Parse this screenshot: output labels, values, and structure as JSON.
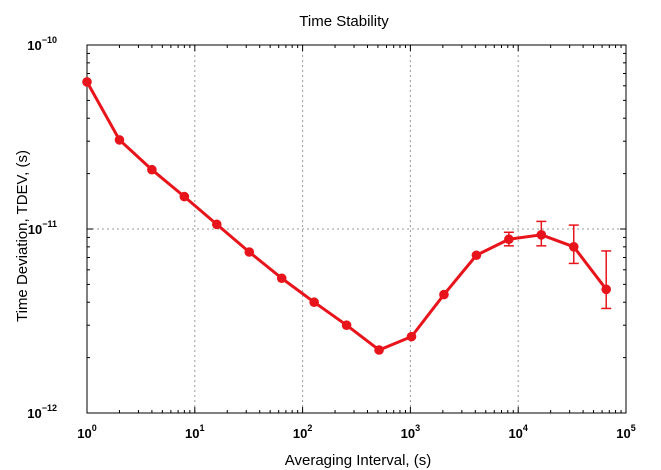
{
  "chart_data": {
    "type": "line",
    "title": "Time Stability",
    "xlabel": "Averaging Interval, (s)",
    "ylabel": "Time Deviation, TDEV, (s)",
    "xscale": "log",
    "yscale": "log",
    "xlim": [
      1,
      100000
    ],
    "ylim": [
      1e-12,
      1e-10
    ],
    "grid": true,
    "x_ticks": [
      {
        "value": 1,
        "base": "10",
        "exp": "0"
      },
      {
        "value": 10,
        "base": "10",
        "exp": "1"
      },
      {
        "value": 100,
        "base": "10",
        "exp": "2"
      },
      {
        "value": 1000,
        "base": "10",
        "exp": "3"
      },
      {
        "value": 10000,
        "base": "10",
        "exp": "4"
      },
      {
        "value": 100000,
        "base": "10",
        "exp": "5"
      }
    ],
    "y_ticks": [
      {
        "value": 1e-12,
        "base": "10",
        "exp": "−12"
      },
      {
        "value": 1e-11,
        "base": "10",
        "exp": "−11"
      },
      {
        "value": 1e-10,
        "base": "10",
        "exp": "−10"
      }
    ],
    "series": [
      {
        "color": "#e8141b",
        "x": [
          1,
          2,
          4,
          8,
          16,
          32,
          64,
          128,
          256,
          512,
          1024,
          2048,
          4096,
          8192,
          16384,
          32768,
          65536
        ],
        "y": [
          6.3e-11,
          3.05e-11,
          2.1e-11,
          1.5e-11,
          1.06e-11,
          7.5e-12,
          5.4e-12,
          4e-12,
          3e-12,
          2.2e-12,
          2.6e-12,
          4.4e-12,
          7.2e-12,
          8.8e-12,
          9.3e-12,
          8e-12,
          4.7e-12
        ],
        "err_low": [
          null,
          null,
          null,
          null,
          null,
          null,
          null,
          null,
          null,
          null,
          null,
          null,
          null,
          8.1e-12,
          8.1e-12,
          6.5e-12,
          3.7e-12
        ],
        "err_high": [
          null,
          null,
          null,
          null,
          null,
          null,
          null,
          null,
          null,
          null,
          null,
          null,
          null,
          9.6e-12,
          1.1e-11,
          1.05e-11,
          7.6e-12
        ]
      }
    ]
  }
}
